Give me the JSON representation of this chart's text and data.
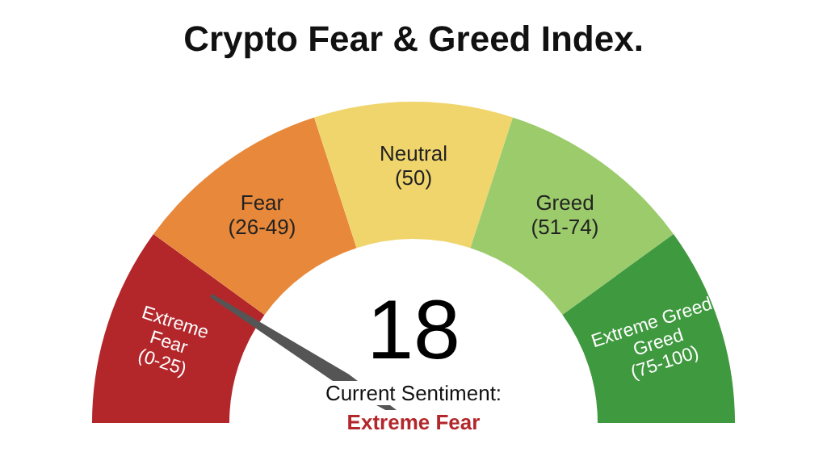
{
  "chart_data": {
    "type": "donut",
    "title": "Crypto Fear & Greed Index.",
    "categories": [
      "Extreme\nFear\n(0-25)",
      "Fear\n(26-49)",
      "Neutral\n(50)",
      "Greed\n(51-74)",
      "Extreme Greed\nGreed\n(75-100)"
    ],
    "values": [
      20,
      20,
      20,
      20,
      20
    ],
    "colors": [
      "#b3272b",
      "#e8883a",
      "#f0d56c",
      "#9ccb6b",
      "#3f993f"
    ],
    "needle": "Extreme\nFear\n(0-25)",
    "annotations": [
      "18",
      "Current Sentiment:",
      "Extreme Fear"
    ],
    "legend": false
  }
}
